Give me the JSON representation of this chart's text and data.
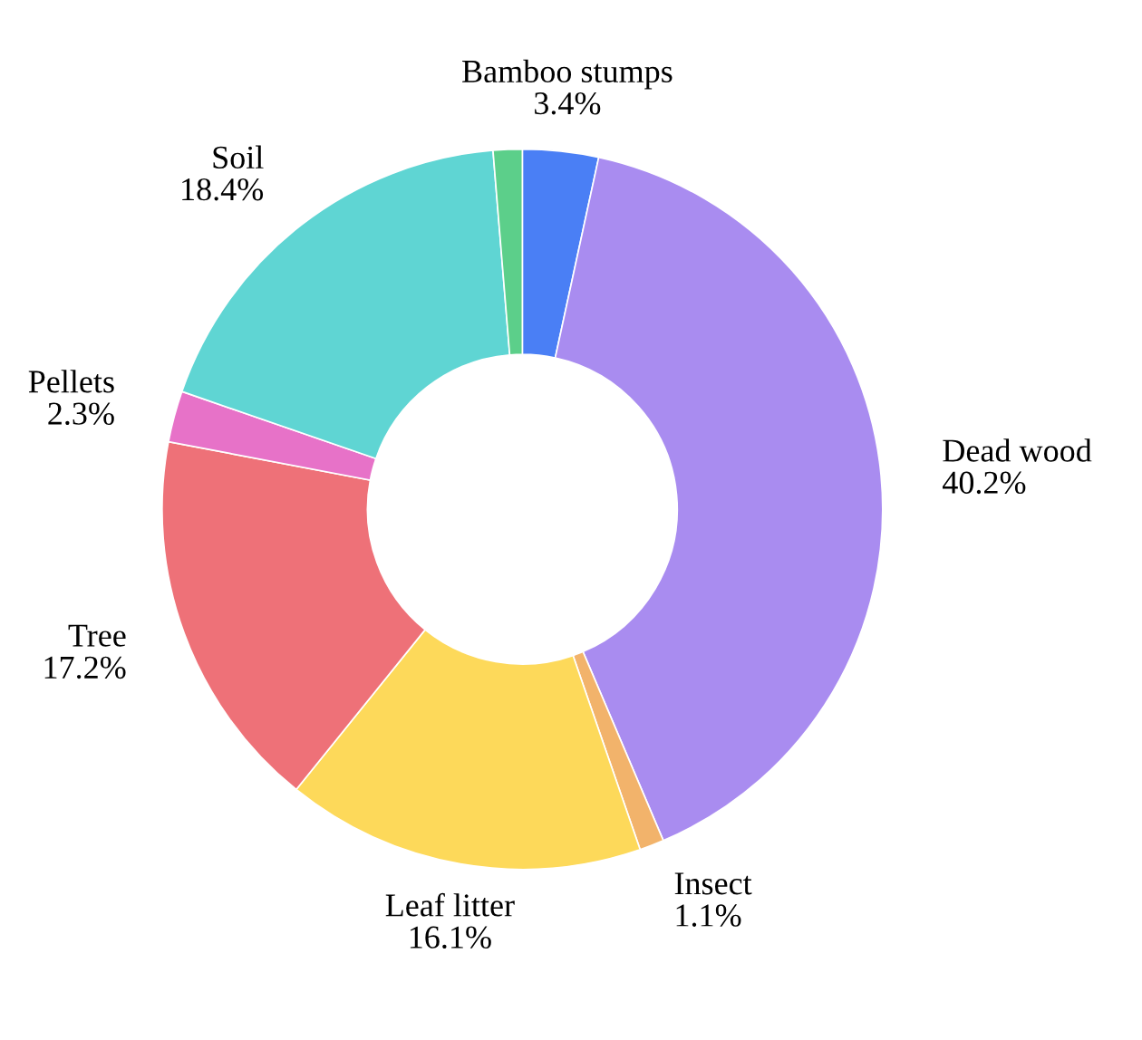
{
  "chart_data": {
    "type": "donut",
    "categories": [
      "Bamboo stumps",
      "Dead wood",
      "Insect",
      "Leaf litter",
      "Tree",
      "Pellets",
      "Soil",
      null
    ],
    "values": [
      3.4,
      40.2,
      1.1,
      16.1,
      17.2,
      2.3,
      18.4,
      1.3
    ],
    "value_labels": [
      "3.4%",
      "40.2%",
      "1.1%",
      "16.1%",
      "17.2%",
      "2.3%",
      "18.4%",
      null
    ],
    "colors": [
      "#4a7ff5",
      "#a98cf0",
      "#f2b36b",
      "#fdd95a",
      "#ee7178",
      "#e772c8",
      "#5fd5d3",
      "#5ccf8a"
    ],
    "legend": false
  }
}
